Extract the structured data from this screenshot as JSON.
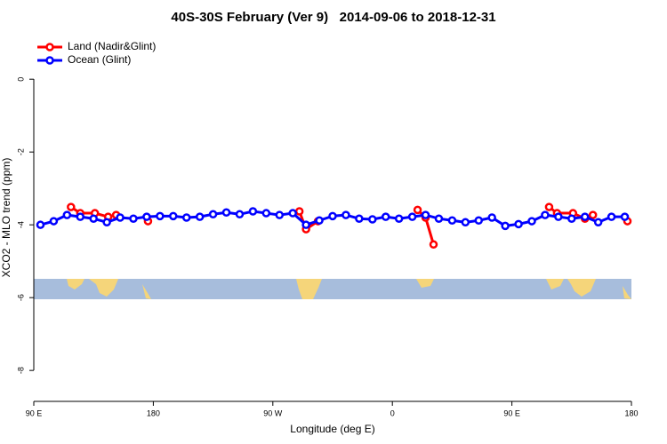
{
  "chart_data": {
    "type": "line",
    "title": "40S-30S February (Ver 9)   2014-09-06 to 2018-12-31",
    "x_label": "Longitude (deg E)",
    "y_label": "XCO2 - MLO trend (ppm)",
    "xlim": [
      90,
      540
    ],
    "ylim": [
      -8.85,
      1.2
    ],
    "xticks": [
      {
        "value": 90,
        "label": "90 E"
      },
      {
        "value": 180,
        "label": "180"
      },
      {
        "value": 270,
        "label": "90 W"
      },
      {
        "value": 360,
        "label": "0"
      },
      {
        "value": 450,
        "label": "90 E"
      },
      {
        "value": 540,
        "label": "180"
      }
    ],
    "yticks": [
      0,
      -2,
      -4,
      -6,
      -8
    ],
    "legend": "top-left",
    "series": [
      {
        "name": "Land (Nadir&Glint)",
        "color": "#ff0000",
        "x": [
          118,
          125,
          136,
          146,
          152,
          null,
          176,
          null,
          290,
          295,
          304,
          null,
          379,
          385,
          391,
          null,
          478,
          484,
          496,
          505,
          511,
          null,
          537
        ],
        "values": [
          -3.51,
          -3.68,
          -3.68,
          -3.78,
          -3.73,
          null,
          -3.9,
          null,
          -3.63,
          -4.12,
          -3.9,
          null,
          -3.59,
          -3.8,
          -4.54,
          null,
          -3.51,
          -3.68,
          -3.68,
          -3.83,
          -3.73,
          null,
          -3.9
        ]
      },
      {
        "name": "Ocean (Glint)",
        "color": "#0000ff",
        "x": [
          95,
          105,
          115,
          125,
          135,
          145,
          155,
          165,
          175,
          185,
          195,
          205,
          215,
          225,
          235,
          245,
          255,
          265,
          275,
          285,
          295,
          305,
          315,
          325,
          335,
          345,
          355,
          365,
          375,
          385,
          395,
          405,
          415,
          425,
          435,
          445,
          455,
          465,
          475,
          485,
          495,
          505,
          515,
          525,
          535
        ],
        "values": [
          -4.0,
          -3.9,
          -3.73,
          -3.78,
          -3.83,
          -3.93,
          -3.8,
          -3.83,
          -3.78,
          -3.76,
          -3.76,
          -3.8,
          -3.78,
          -3.71,
          -3.66,
          -3.71,
          -3.63,
          -3.68,
          -3.73,
          -3.68,
          -4.0,
          -3.88,
          -3.76,
          -3.73,
          -3.83,
          -3.85,
          -3.78,
          -3.83,
          -3.78,
          -3.73,
          -3.83,
          -3.88,
          -3.93,
          -3.88,
          -3.8,
          -4.03,
          -3.98,
          -3.9,
          -3.73,
          -3.78,
          -3.83,
          -3.78,
          -3.93,
          -3.78,
          -3.78
        ]
      }
    ]
  }
}
